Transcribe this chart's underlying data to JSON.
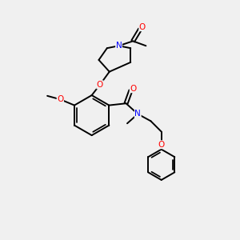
{
  "background_color": "#f0f0f0",
  "bond_color": "#000000",
  "atom_colors": {
    "N": "#0000ff",
    "O": "#ff0000",
    "C": "#000000"
  },
  "figsize": [
    3.0,
    3.0
  ],
  "dpi": 100
}
